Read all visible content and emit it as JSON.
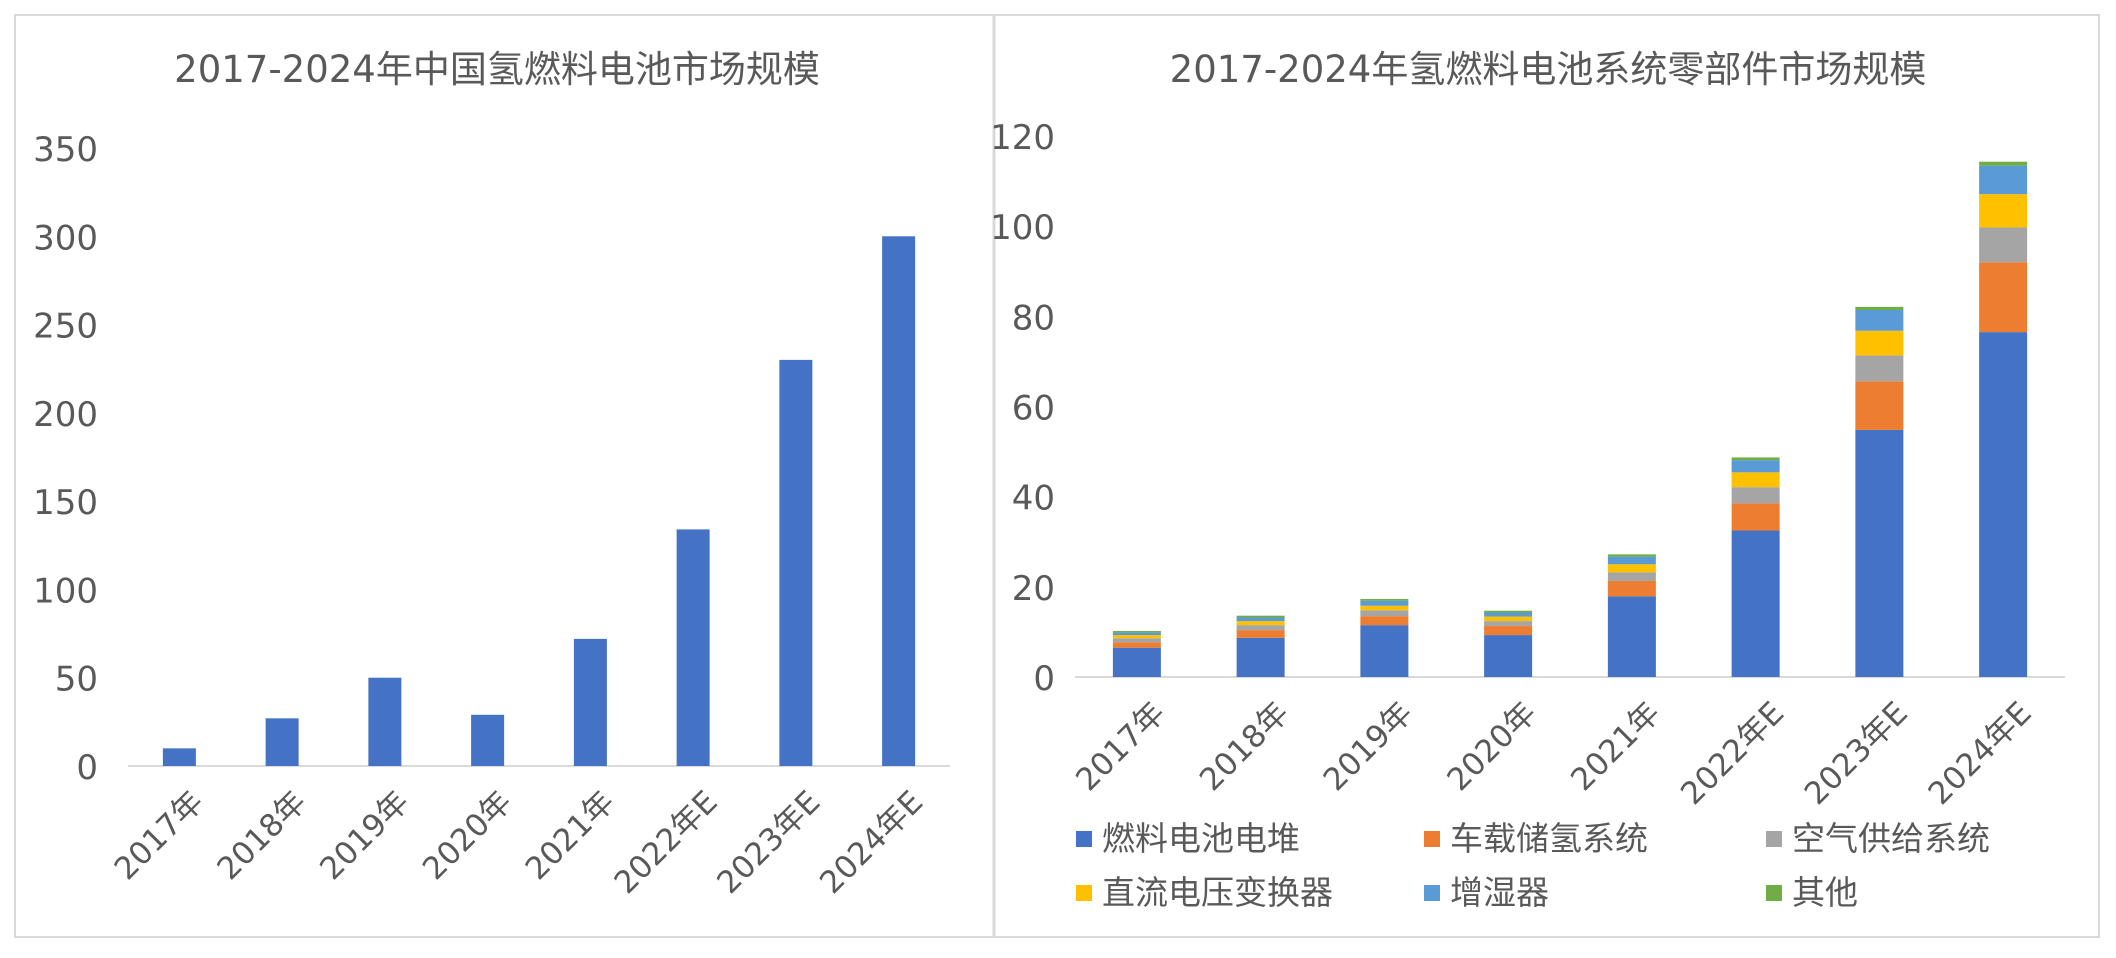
{
  "chart_data": [
    {
      "type": "bar",
      "title": "2017-2024年中国氢燃料电池市场规模",
      "categories": [
        "2017年",
        "2018年",
        "2019年",
        "2020年",
        "2021年",
        "2022年E",
        "2023年E",
        "2024年E"
      ],
      "values": [
        10,
        27,
        50,
        29,
        72,
        134,
        230,
        300
      ],
      "ylim": [
        0,
        350
      ],
      "yticks": [
        0,
        50,
        100,
        150,
        200,
        250,
        300,
        350
      ],
      "grid": false,
      "colors": {
        "bar": "#4472C4"
      }
    },
    {
      "type": "bar",
      "stacked": true,
      "title": "2017-2024年氢燃料电池系统零部件市场规模",
      "categories": [
        "2017年",
        "2018年",
        "2019年",
        "2020年",
        "2021年",
        "2022年E",
        "2023年E",
        "2024年E"
      ],
      "series": [
        {
          "name": "燃料电池电堆",
          "color": "#4472C4",
          "values": [
            6.5,
            8.7,
            11.5,
            9.3,
            17.9,
            32.5,
            54.8,
            76.5
          ]
        },
        {
          "name": "车载储氢系统",
          "color": "#ED7D31",
          "values": [
            1.2,
            1.7,
            2.0,
            2.0,
            3.4,
            6.0,
            10.8,
            15.5
          ]
        },
        {
          "name": "空气供给系统",
          "color": "#A5A5A5",
          "values": [
            0.9,
            1.1,
            1.3,
            1.1,
            1.9,
            3.6,
            5.7,
            7.7
          ]
        },
        {
          "name": "直流电压变换器",
          "color": "#FFC000",
          "values": [
            0.7,
            0.9,
            1.0,
            1.0,
            1.8,
            3.3,
            5.5,
            7.4
          ]
        },
        {
          "name": "增湿器",
          "color": "#5B9BD5",
          "values": [
            0.6,
            0.8,
            1.1,
            0.9,
            1.7,
            2.7,
            4.6,
            6.3
          ]
        },
        {
          "name": "其他",
          "color": "#70AD47",
          "values": [
            0.3,
            0.4,
            0.4,
            0.4,
            0.5,
            0.6,
            0.7,
            0.9
          ]
        }
      ],
      "ylim": [
        0,
        120
      ],
      "yticks": [
        0,
        20,
        40,
        60,
        80,
        100,
        120
      ],
      "grid": false,
      "legend_position": "bottom"
    }
  ]
}
